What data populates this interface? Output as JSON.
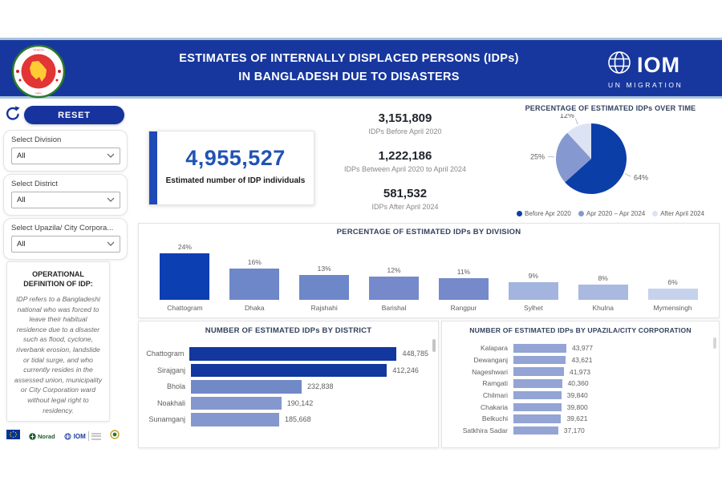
{
  "header": {
    "title_line1": "ESTIMATES OF INTERNALLY DISPLACED PERSONS (IDPs)",
    "title_line2": "IN BANGLADESH DUE TO DISASTERS",
    "iom": {
      "name": "IOM",
      "tagline": "UN MIGRATION"
    }
  },
  "sidebar": {
    "reset_label": "RESET",
    "filters": [
      {
        "label": "Select Division",
        "value": "All"
      },
      {
        "label": "Select District",
        "value": "All"
      },
      {
        "label": "Select Upazila/ City Corpora...",
        "value": "All"
      }
    ],
    "definition_title": "OPERATIONAL DEFINITION OF IDP:",
    "definition_body": "IDP refers to a Bangladeshi national who was forced to leave their habitual residence due to a disaster such as flood, cyclone, riverbank erosion, landslide or tidal surge, and who currently resides in the assessed union, municipality or City Corporation ward without legal right to residency.",
    "partners": {
      "norad_label": "Norad",
      "iom_label": "IOM"
    }
  },
  "kpi": {
    "value": "4,955,527",
    "label": "Estimated number of IDP individuals"
  },
  "stats": [
    {
      "value": "3,151,809",
      "label": "IDPs Before April 2020"
    },
    {
      "value": "1,222,186",
      "label": "IDPs Between April 2020 to April 2024"
    },
    {
      "value": "581,532",
      "label": "IDPs After April 2024"
    }
  ],
  "chart_data": [
    {
      "type": "pie",
      "title": "PERCENTAGE OF ESTIMATED IDPs OVER TIME",
      "labels": [
        "Before Apr 2020",
        "Apr 2020 – Apr 2024",
        "After April 2024"
      ],
      "values": [
        64,
        25,
        12
      ],
      "unit": "%",
      "colors": [
        "#0C3EA8",
        "#8598CF",
        "#DCE3F4"
      ],
      "legend_position": "bottom"
    },
    {
      "type": "bar",
      "title": "PERCENTAGE OF ESTIMATED IDPs BY DIVISION",
      "categories": [
        "Chattogram",
        "Dhaka",
        "Rajshahi",
        "Barishal",
        "Rangpur",
        "Sylhet",
        "Khulna",
        "Mymensingh"
      ],
      "values": [
        24,
        16,
        13,
        12,
        11,
        9,
        8,
        6
      ],
      "value_labels": [
        "24%",
        "16%",
        "13%",
        "12%",
        "11%",
        "9%",
        "8%",
        "6%"
      ],
      "unit": "%",
      "ylim": [
        0,
        24
      ],
      "colors": [
        "#0B3FB2",
        "#6E87C9",
        "#6E87C9",
        "#7589CB",
        "#7589CB",
        "#A3B4DE",
        "#A9B9E0",
        "#C6D2EC"
      ]
    },
    {
      "type": "bar-horizontal",
      "title": "NUMBER OF ESTIMATED IDPs BY DISTRICT",
      "categories": [
        "Chattogram",
        "Sirajganj",
        "Bhola",
        "Noakhali",
        "Sunamganj"
      ],
      "values": [
        448785,
        412246,
        232838,
        190142,
        185668
      ],
      "value_labels": [
        "448,785",
        "412,246",
        "232,838",
        "190,142",
        "185,668"
      ],
      "xlim": [
        0,
        448785
      ],
      "colors": [
        "#12379E",
        "#12379E",
        "#7289C7",
        "#8598CE",
        "#8598CE"
      ]
    },
    {
      "type": "bar-horizontal",
      "title": "NUMBER OF ESTIMATED IDPs BY UPAZILA/CITY CORPORATION",
      "categories": [
        "Kalapara",
        "Dewanganj",
        "Nageshwari",
        "Ramgati",
        "Chilmari",
        "Chakaria",
        "Belkuchi",
        "Satkhira Sadar"
      ],
      "values": [
        43977,
        43621,
        41973,
        40360,
        39840,
        39800,
        39621,
        37170
      ],
      "value_labels": [
        "43,977",
        "43,621",
        "41,973",
        "40,360",
        "39,840",
        "39,800",
        "39,621",
        "37,170"
      ],
      "xlim": [
        0,
        43977
      ],
      "colors": [
        "#93A4D5",
        "#93A4D5",
        "#93A4D5",
        "#93A4D5",
        "#93A4D5",
        "#93A4D5",
        "#93A4D5",
        "#93A4D5"
      ]
    }
  ]
}
